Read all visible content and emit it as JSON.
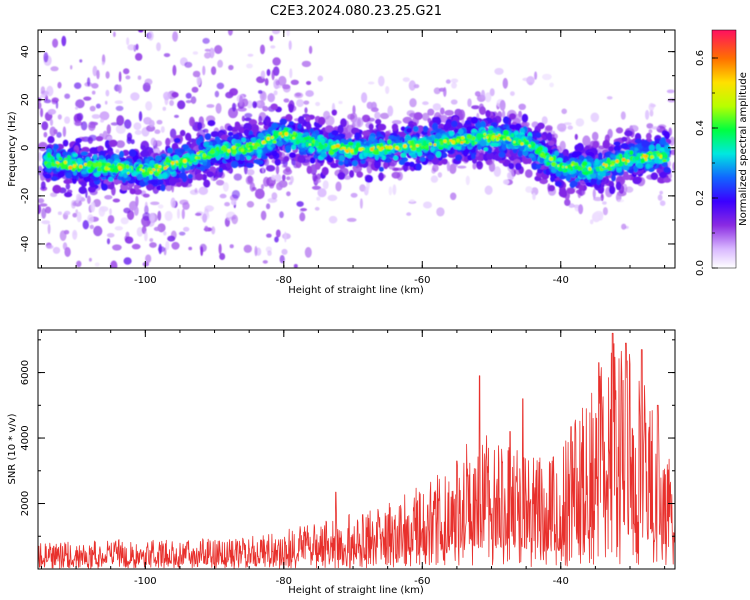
{
  "chart_data": [
    {
      "type": "heatmap",
      "title": "C2E3.2024.080.23.25.G21",
      "xlabel": "Height of straight line (km)",
      "ylabel": "Frequency (Hz)",
      "xlim": [
        -115.5,
        -23.5
      ],
      "ylim": [
        -50,
        49
      ],
      "x_ticks": [
        -100,
        -80,
        -60,
        -40
      ],
      "y_ticks": [
        -40,
        -20,
        0,
        20,
        40
      ],
      "colorbar": {
        "label": "Normalized spectral amplitude",
        "range": [
          0,
          0.68
        ],
        "ticks": [
          0.0,
          0.2,
          0.4,
          0.6
        ]
      },
      "ridge_center_hz": [
        [
          -115,
          -5
        ],
        [
          -110,
          -7
        ],
        [
          -105,
          -8
        ],
        [
          -100,
          -10
        ],
        [
          -95,
          -6
        ],
        [
          -90,
          -2
        ],
        [
          -85,
          0
        ],
        [
          -80,
          6
        ],
        [
          -75,
          1
        ],
        [
          -70,
          -1
        ],
        [
          -65,
          0
        ],
        [
          -60,
          1
        ],
        [
          -55,
          3
        ],
        [
          -50,
          5
        ],
        [
          -45,
          2
        ],
        [
          -40,
          -8
        ],
        [
          -35,
          -9
        ],
        [
          -30,
          -4
        ],
        [
          -25,
          -3
        ]
      ]
    },
    {
      "type": "line",
      "xlabel": "Height of straight line (km)",
      "ylabel": "SNR (10 * v/v)",
      "xlim": [
        -115.5,
        -23.5
      ],
      "ylim": [
        0,
        7300
      ],
      "x_ticks": [
        -100,
        -80,
        -60,
        -40
      ],
      "y_ticks": [
        2000,
        4000,
        6000
      ],
      "line_color": "#e8302c",
      "envelope": [
        [
          -115,
          800
        ],
        [
          -105,
          900
        ],
        [
          -95,
          900
        ],
        [
          -85,
          1000
        ],
        [
          -78,
          1300
        ],
        [
          -72,
          1600
        ],
        [
          -66,
          1900
        ],
        [
          -60,
          2600
        ],
        [
          -56,
          3400
        ],
        [
          -52,
          4300
        ],
        [
          -48,
          3900
        ],
        [
          -44,
          3400
        ],
        [
          -40,
          3800
        ],
        [
          -36,
          5500
        ],
        [
          -33,
          7200
        ],
        [
          -30,
          6900
        ],
        [
          -27,
          5500
        ],
        [
          -24,
          3200
        ]
      ],
      "peaks": [
        [
          -72.5,
          2350
        ],
        [
          -55,
          3300
        ],
        [
          -51.7,
          5900
        ],
        [
          -47.3,
          4200
        ],
        [
          -45.5,
          5200
        ],
        [
          -38.5,
          4350
        ],
        [
          -34.5,
          6300
        ],
        [
          -32.5,
          7200
        ],
        [
          -30.6,
          6900
        ],
        [
          -28.3,
          6700
        ],
        [
          -26,
          5000
        ]
      ]
    }
  ]
}
